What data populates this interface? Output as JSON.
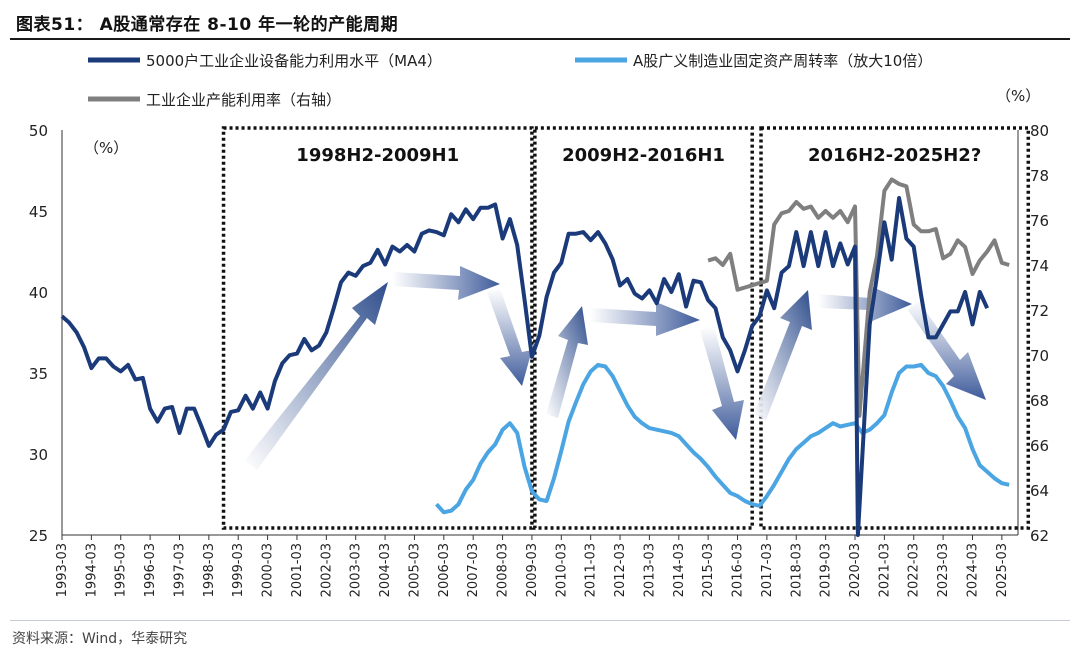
{
  "title": "图表51： A股通常存在 8-10 年一轮的产能周期",
  "source": "资料来源：Wind，华泰研究",
  "chart_data": {
    "type": "line",
    "left_axis_unit": "（%）",
    "right_axis_unit": "（%）",
    "left_ylim": [
      25,
      50
    ],
    "left_yticks": [
      25,
      30,
      35,
      40,
      45,
      50
    ],
    "right_ylim": [
      62,
      80
    ],
    "right_yticks": [
      62,
      64,
      66,
      68,
      70,
      72,
      74,
      76,
      78,
      80
    ],
    "x_tick_labels": [
      "1993-03",
      "1994-03",
      "1995-03",
      "1996-03",
      "1997-03",
      "1998-03",
      "1999-03",
      "2000-03",
      "2001-03",
      "2002-03",
      "2003-03",
      "2004-03",
      "2005-03",
      "2006-03",
      "2007-03",
      "2008-03",
      "2009-03",
      "2010-03",
      "2011-03",
      "2012-03",
      "2013-03",
      "2014-03",
      "2015-03",
      "2016-03",
      "2017-03",
      "2018-03",
      "2019-03",
      "2020-03",
      "2021-03",
      "2022-03",
      "2023-03",
      "2024-03",
      "2025-03"
    ],
    "periods": [
      {
        "label": "1998H2-2009H1",
        "start": 1998.5,
        "end": 2009.0
      },
      {
        "label": "2009H2-2016H1",
        "start": 2009.1,
        "end": 2016.5
      },
      {
        "label": "2016H2-2025H2?",
        "start": 2016.8,
        "end": 2025.9
      }
    ],
    "series": [
      {
        "name": "5000户工业企业设备能力利用水平（MA4）",
        "axis": "left",
        "color": "#1b3a7a",
        "points": [
          [
            1993.0,
            38.5
          ],
          [
            1993.25,
            38.1
          ],
          [
            1993.5,
            37.5
          ],
          [
            1993.75,
            36.6
          ],
          [
            1994.0,
            35.3
          ],
          [
            1994.25,
            35.9
          ],
          [
            1994.5,
            35.9
          ],
          [
            1994.75,
            35.4
          ],
          [
            1995.0,
            35.1
          ],
          [
            1995.25,
            35.5
          ],
          [
            1995.5,
            34.6
          ],
          [
            1995.75,
            34.7
          ],
          [
            1996.0,
            32.8
          ],
          [
            1996.25,
            32.0
          ],
          [
            1996.5,
            32.8
          ],
          [
            1996.75,
            32.9
          ],
          [
            1997.0,
            31.3
          ],
          [
            1997.25,
            32.8
          ],
          [
            1997.5,
            32.8
          ],
          [
            1997.75,
            31.7
          ],
          [
            1998.0,
            30.5
          ],
          [
            1998.25,
            31.2
          ],
          [
            1998.5,
            31.5
          ],
          [
            1998.75,
            32.6
          ],
          [
            1999.0,
            32.7
          ],
          [
            1999.25,
            33.6
          ],
          [
            1999.5,
            32.8
          ],
          [
            1999.75,
            33.8
          ],
          [
            2000.0,
            32.8
          ],
          [
            2000.25,
            34.5
          ],
          [
            2000.5,
            35.6
          ],
          [
            2000.75,
            36.1
          ],
          [
            2001.0,
            36.2
          ],
          [
            2001.25,
            37.1
          ],
          [
            2001.5,
            36.4
          ],
          [
            2001.75,
            36.7
          ],
          [
            2002.0,
            37.5
          ],
          [
            2002.25,
            39.0
          ],
          [
            2002.5,
            40.6
          ],
          [
            2002.75,
            41.2
          ],
          [
            2003.0,
            41.0
          ],
          [
            2003.25,
            41.6
          ],
          [
            2003.5,
            41.8
          ],
          [
            2003.75,
            42.6
          ],
          [
            2004.0,
            41.7
          ],
          [
            2004.25,
            42.8
          ],
          [
            2004.5,
            42.5
          ],
          [
            2004.75,
            42.9
          ],
          [
            2005.0,
            42.5
          ],
          [
            2005.25,
            43.6
          ],
          [
            2005.5,
            43.8
          ],
          [
            2005.75,
            43.7
          ],
          [
            2006.0,
            43.5
          ],
          [
            2006.25,
            44.8
          ],
          [
            2006.5,
            44.3
          ],
          [
            2006.75,
            45.1
          ],
          [
            2007.0,
            44.5
          ],
          [
            2007.25,
            45.2
          ],
          [
            2007.5,
            45.2
          ],
          [
            2007.75,
            45.4
          ],
          [
            2008.0,
            43.3
          ],
          [
            2008.25,
            44.5
          ],
          [
            2008.5,
            42.9
          ],
          [
            2008.75,
            39.5
          ],
          [
            2009.0,
            36.0
          ],
          [
            2009.25,
            37.3
          ],
          [
            2009.5,
            39.7
          ],
          [
            2009.75,
            41.2
          ],
          [
            2010.0,
            41.8
          ],
          [
            2010.25,
            43.6
          ],
          [
            2010.5,
            43.6
          ],
          [
            2010.75,
            43.7
          ],
          [
            2011.0,
            43.2
          ],
          [
            2011.25,
            43.7
          ],
          [
            2011.5,
            43.0
          ],
          [
            2011.75,
            42.0
          ],
          [
            2012.0,
            40.4
          ],
          [
            2012.25,
            40.8
          ],
          [
            2012.5,
            39.9
          ],
          [
            2012.75,
            39.6
          ],
          [
            2013.0,
            40.1
          ],
          [
            2013.25,
            39.3
          ],
          [
            2013.5,
            40.8
          ],
          [
            2013.75,
            40.0
          ],
          [
            2014.0,
            41.1
          ],
          [
            2014.25,
            39.1
          ],
          [
            2014.5,
            40.7
          ],
          [
            2014.75,
            40.6
          ],
          [
            2015.0,
            39.5
          ],
          [
            2015.25,
            39.0
          ],
          [
            2015.5,
            37.2
          ],
          [
            2015.75,
            36.4
          ],
          [
            2016.0,
            35.1
          ],
          [
            2016.25,
            36.4
          ],
          [
            2016.5,
            37.9
          ],
          [
            2016.75,
            38.5
          ],
          [
            2017.0,
            40.1
          ],
          [
            2017.25,
            39.0
          ],
          [
            2017.5,
            41.2
          ],
          [
            2017.75,
            41.6
          ],
          [
            2018.0,
            43.7
          ],
          [
            2018.25,
            41.6
          ],
          [
            2018.5,
            43.7
          ],
          [
            2018.75,
            41.6
          ],
          [
            2019.0,
            43.7
          ],
          [
            2019.25,
            41.6
          ],
          [
            2019.5,
            43.0
          ],
          [
            2019.75,
            41.7
          ],
          [
            2020.0,
            42.8
          ],
          [
            2020.1,
            25.0
          ],
          [
            2020.5,
            38.0
          ],
          [
            2020.75,
            41.0
          ],
          [
            2021.0,
            44.3
          ],
          [
            2021.25,
            42.0
          ],
          [
            2021.5,
            45.8
          ],
          [
            2021.75,
            43.3
          ],
          [
            2022.0,
            42.8
          ],
          [
            2022.25,
            39.8
          ],
          [
            2022.5,
            37.2
          ],
          [
            2022.75,
            37.2
          ],
          [
            2023.0,
            38.0
          ],
          [
            2023.25,
            38.8
          ],
          [
            2023.5,
            38.8
          ],
          [
            2023.75,
            40.0
          ],
          [
            2024.0,
            38.0
          ],
          [
            2024.25,
            40.0
          ],
          [
            2024.5,
            39.0
          ]
        ]
      },
      {
        "name": "A股广义制造业固定资产周转率（放大10倍）",
        "axis": "left",
        "color": "#4aa5e2",
        "points": [
          [
            2005.75,
            26.9
          ],
          [
            2006.0,
            26.4
          ],
          [
            2006.25,
            26.5
          ],
          [
            2006.5,
            26.9
          ],
          [
            2006.75,
            27.8
          ],
          [
            2007.0,
            28.4
          ],
          [
            2007.25,
            29.4
          ],
          [
            2007.5,
            30.1
          ],
          [
            2007.75,
            30.6
          ],
          [
            2008.0,
            31.5
          ],
          [
            2008.25,
            31.9
          ],
          [
            2008.5,
            31.3
          ],
          [
            2008.75,
            29.2
          ],
          [
            2009.0,
            27.7
          ],
          [
            2009.25,
            27.2
          ],
          [
            2009.5,
            27.1
          ],
          [
            2009.75,
            28.5
          ],
          [
            2010.0,
            30.2
          ],
          [
            2010.25,
            32.0
          ],
          [
            2010.5,
            33.2
          ],
          [
            2010.75,
            34.3
          ],
          [
            2011.0,
            35.1
          ],
          [
            2011.25,
            35.5
          ],
          [
            2011.5,
            35.4
          ],
          [
            2011.75,
            34.8
          ],
          [
            2012.0,
            33.9
          ],
          [
            2012.25,
            33.0
          ],
          [
            2012.5,
            32.3
          ],
          [
            2012.75,
            31.9
          ],
          [
            2013.0,
            31.6
          ],
          [
            2013.25,
            31.5
          ],
          [
            2013.5,
            31.4
          ],
          [
            2013.75,
            31.3
          ],
          [
            2014.0,
            31.1
          ],
          [
            2014.25,
            30.6
          ],
          [
            2014.5,
            30.1
          ],
          [
            2014.75,
            29.7
          ],
          [
            2015.0,
            29.2
          ],
          [
            2015.25,
            28.6
          ],
          [
            2015.5,
            28.1
          ],
          [
            2015.75,
            27.6
          ],
          [
            2016.0,
            27.4
          ],
          [
            2016.25,
            27.1
          ],
          [
            2016.5,
            26.9
          ],
          [
            2016.75,
            26.8
          ],
          [
            2017.0,
            27.4
          ],
          [
            2017.25,
            28.1
          ],
          [
            2017.5,
            28.9
          ],
          [
            2017.75,
            29.7
          ],
          [
            2018.0,
            30.3
          ],
          [
            2018.25,
            30.7
          ],
          [
            2018.5,
            31.1
          ],
          [
            2018.75,
            31.3
          ],
          [
            2019.0,
            31.6
          ],
          [
            2019.25,
            31.9
          ],
          [
            2019.5,
            31.7
          ],
          [
            2019.75,
            31.8
          ],
          [
            2020.0,
            31.9
          ],
          [
            2020.25,
            31.3
          ],
          [
            2020.5,
            31.5
          ],
          [
            2020.75,
            31.9
          ],
          [
            2021.0,
            32.4
          ],
          [
            2021.25,
            33.8
          ],
          [
            2021.5,
            35.0
          ],
          [
            2021.75,
            35.4
          ],
          [
            2022.0,
            35.4
          ],
          [
            2022.25,
            35.5
          ],
          [
            2022.5,
            35.0
          ],
          [
            2022.75,
            34.8
          ],
          [
            2023.0,
            34.2
          ],
          [
            2023.25,
            33.3
          ],
          [
            2023.5,
            32.3
          ],
          [
            2023.75,
            31.6
          ],
          [
            2024.0,
            30.3
          ],
          [
            2024.25,
            29.3
          ],
          [
            2024.5,
            28.9
          ],
          [
            2024.75,
            28.5
          ],
          [
            2025.0,
            28.2
          ],
          [
            2025.25,
            28.1
          ]
        ]
      },
      {
        "name": "工业企业产能利用率（右轴）",
        "axis": "right",
        "color": "#7f7f7f",
        "points": [
          [
            2015.0,
            74.2
          ],
          [
            2015.25,
            74.3
          ],
          [
            2015.5,
            74.0
          ],
          [
            2015.75,
            74.5
          ],
          [
            2016.0,
            72.9
          ],
          [
            2016.25,
            73.0
          ],
          [
            2016.5,
            73.1
          ],
          [
            2016.75,
            73.2
          ],
          [
            2017.0,
            73.3
          ],
          [
            2017.25,
            75.8
          ],
          [
            2017.5,
            76.3
          ],
          [
            2017.75,
            76.4
          ],
          [
            2018.0,
            76.8
          ],
          [
            2018.25,
            76.5
          ],
          [
            2018.5,
            76.6
          ],
          [
            2018.75,
            76.1
          ],
          [
            2019.0,
            76.4
          ],
          [
            2019.25,
            76.1
          ],
          [
            2019.5,
            76.4
          ],
          [
            2019.75,
            75.9
          ],
          [
            2020.0,
            76.6
          ],
          [
            2020.15,
            67.3
          ],
          [
            2020.5,
            72.8
          ],
          [
            2020.75,
            74.4
          ],
          [
            2021.0,
            77.3
          ],
          [
            2021.25,
            77.8
          ],
          [
            2021.5,
            77.6
          ],
          [
            2021.75,
            77.5
          ],
          [
            2022.0,
            75.8
          ],
          [
            2022.25,
            75.5
          ],
          [
            2022.5,
            75.5
          ],
          [
            2022.75,
            75.6
          ],
          [
            2023.0,
            74.3
          ],
          [
            2023.25,
            74.5
          ],
          [
            2023.5,
            75.1
          ],
          [
            2023.75,
            74.8
          ],
          [
            2024.0,
            73.6
          ],
          [
            2024.25,
            74.2
          ],
          [
            2024.5,
            74.6
          ],
          [
            2024.75,
            75.1
          ],
          [
            2025.0,
            74.1
          ],
          [
            2025.25,
            74.0
          ]
        ]
      }
    ]
  }
}
